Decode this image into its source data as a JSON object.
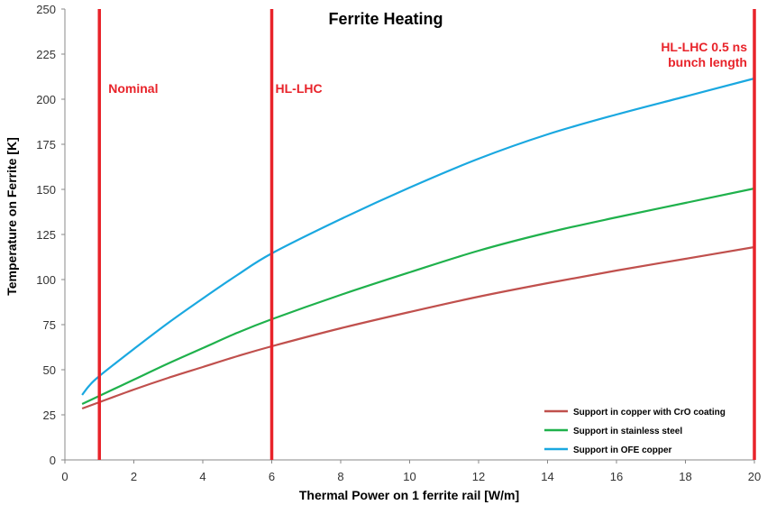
{
  "chart_data": {
    "type": "line",
    "title": "Ferrite Heating",
    "xlabel": "Thermal Power on 1 ferrite rail [W/m]",
    "ylabel": "Temperature on Ferrite [K]",
    "xlim": [
      0,
      20
    ],
    "ylim": [
      0,
      250
    ],
    "x_ticks": [
      0,
      2,
      4,
      6,
      8,
      10,
      12,
      14,
      16,
      18,
      20
    ],
    "y_ticks": [
      0,
      25,
      50,
      75,
      100,
      125,
      150,
      175,
      200,
      225,
      250
    ],
    "grid": false,
    "legend_position": "bottom-right",
    "vertical_markers": [
      {
        "x": 1,
        "label": [
          "Nominal"
        ]
      },
      {
        "x": 6,
        "label": [
          "HL-LHC"
        ]
      },
      {
        "x": 20,
        "label": [
          "HL-LHC 0.5 ns",
          "bunch length"
        ]
      }
    ],
    "series": [
      {
        "name": "Support in copper with CrO coating",
        "color": "#c0504d",
        "x": [
          0.5,
          1,
          2,
          3,
          4,
          5,
          6,
          8,
          10,
          12,
          14,
          16,
          18,
          20
        ],
        "y": [
          28.5,
          32,
          39,
          45.5,
          51.5,
          57.5,
          63,
          73,
          82,
          90.5,
          98,
          105,
          111.5,
          118
        ]
      },
      {
        "name": "Support in stainless steel",
        "color": "#1fb14c",
        "x": [
          0.5,
          1,
          2,
          3,
          4,
          5,
          6,
          8,
          10,
          12,
          14,
          16,
          18,
          20
        ],
        "y": [
          31,
          35.5,
          44.5,
          53.5,
          62,
          70.5,
          78,
          91.5,
          104,
          116,
          126,
          134.5,
          142.5,
          150.5
        ]
      },
      {
        "name": "Support in OFE copper",
        "color": "#1aa8e0",
        "x": [
          0.5,
          0.7,
          1,
          2,
          3,
          4,
          5,
          6,
          8,
          10,
          12,
          14,
          16,
          18,
          20
        ],
        "y": [
          36,
          41,
          46.5,
          61.5,
          76,
          89.5,
          102.5,
          114.5,
          133.5,
          151,
          167,
          180.5,
          191.5,
          201.5,
          211.5
        ]
      }
    ],
    "marker_color": "#e8232a"
  }
}
